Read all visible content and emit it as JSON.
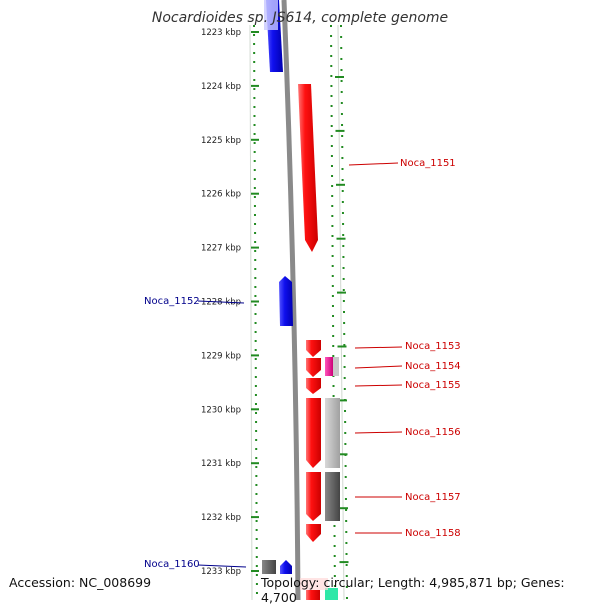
{
  "title": "Nocardioides sp. JS614, complete genome",
  "footer": {
    "accession": "Accession: NC_008699",
    "topology": "Topology: circular; Length: 4,985,871 bp; Genes: 4,700"
  },
  "scale": {
    "unit": "kbp",
    "ticks": [
      "1223 kbp",
      "1224 kbp",
      "1225 kbp",
      "1226 kbp",
      "1227 kbp",
      "1228 kbp",
      "1229 kbp",
      "1230 kbp",
      "1231 kbp",
      "1232 kbp",
      "1233 kbp"
    ]
  },
  "genes": [
    {
      "label": "",
      "strand": "reverse",
      "color": "#1010e8"
    },
    {
      "label": "Noca_1151",
      "strand": "forward",
      "color": "#ee1111"
    },
    {
      "label": "Noca_1152",
      "strand": "reverse",
      "color": "#1010e8"
    },
    {
      "label": "Noca_1153",
      "strand": "forward",
      "color": "#ee1111"
    },
    {
      "label": "Noca_1154",
      "strand": "forward",
      "color": "#ee1111"
    },
    {
      "label": "Noca_1155",
      "strand": "forward",
      "color": "#ee1111"
    },
    {
      "label": "Noca_1156",
      "strand": "forward",
      "color": "#ee1111"
    },
    {
      "label": "Noca_1157",
      "strand": "forward",
      "color": "#ee1111"
    },
    {
      "label": "Noca_1158",
      "strand": "forward",
      "color": "#ee1111"
    },
    {
      "label": "Noca_1160",
      "strand": "reverse",
      "color": "#1010e8"
    }
  ],
  "colors": {
    "forward_label": "#cc0000",
    "reverse_label": "#00008b",
    "backbone": "#888888",
    "dotted_track": "#228b22"
  }
}
